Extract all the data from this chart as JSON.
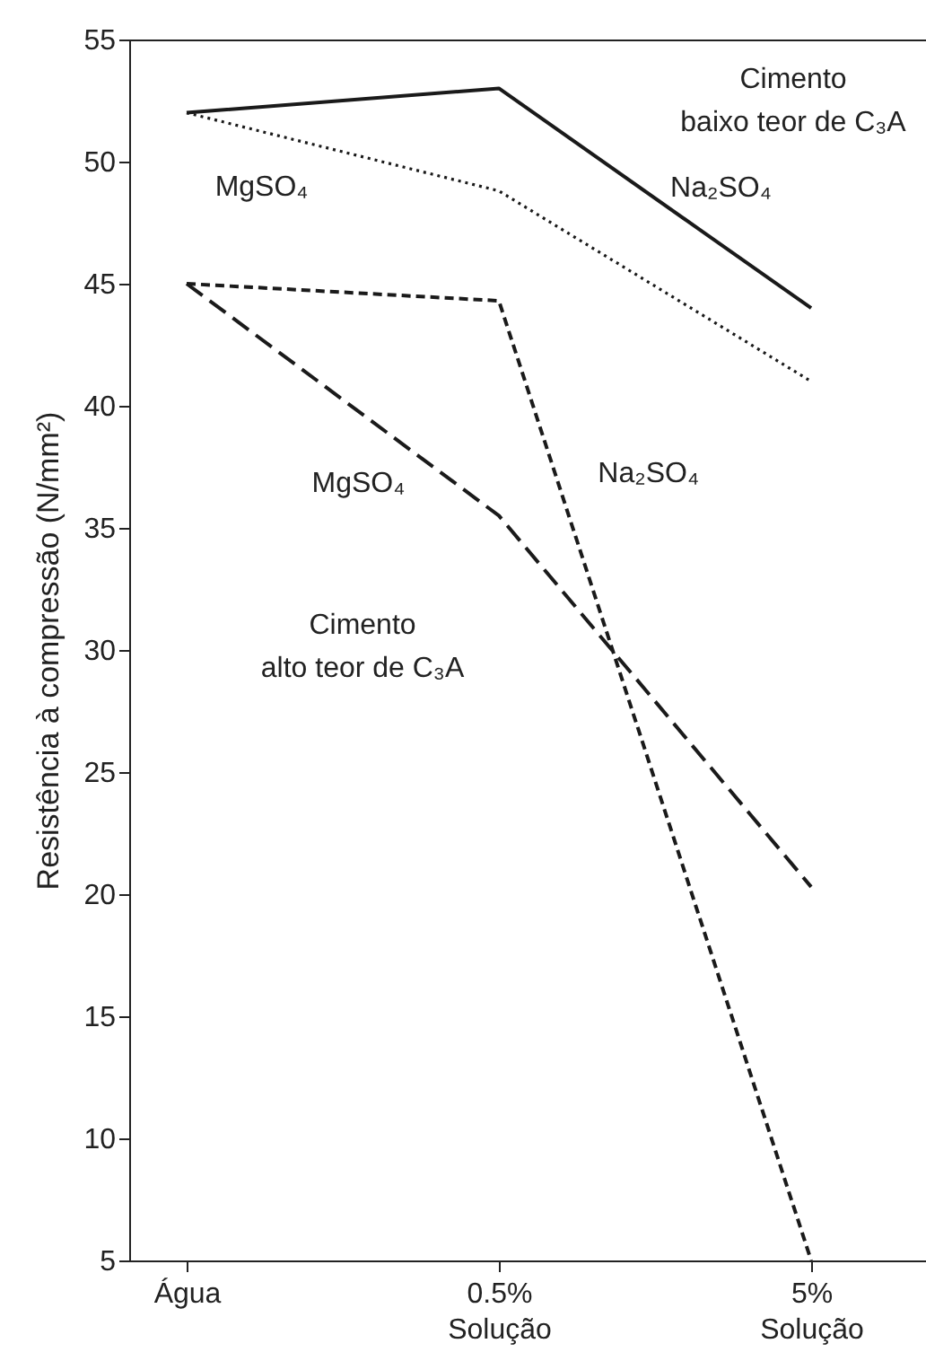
{
  "chart_data": {
    "type": "line",
    "ylabel": "Resistência à compressão (N/mm²)",
    "categories": [
      "Água",
      "0.5%\nSolução",
      "5%\nSolução"
    ],
    "ylim": [
      5,
      55
    ],
    "yticks": [
      5,
      10,
      15,
      20,
      25,
      30,
      35,
      40,
      45,
      50,
      55
    ],
    "series": [
      {
        "name": "Na₂SO₄",
        "color": "#1a1a1a",
        "line_style": "solid",
        "values": [
          52,
          53,
          44
        ]
      },
      {
        "name": "MgSO₄",
        "color": "#1a1a1a",
        "line_style": "dotted",
        "values": [
          52,
          48.8,
          41
        ]
      },
      {
        "name": "Na₂SO₄",
        "color": "#1a1a1a",
        "line_style": "dashed",
        "values": [
          45,
          44.3,
          5
        ]
      },
      {
        "name": "MgSO₄",
        "color": "#1a1a1a",
        "line_style": "dashed",
        "values": [
          45,
          35.5,
          20.3
        ]
      }
    ],
    "annotations": [
      "Cimento\nbaixo teor de C₃A",
      "Cimento\nalto teor de C₃A"
    ],
    "grid": false,
    "marker": "none"
  }
}
